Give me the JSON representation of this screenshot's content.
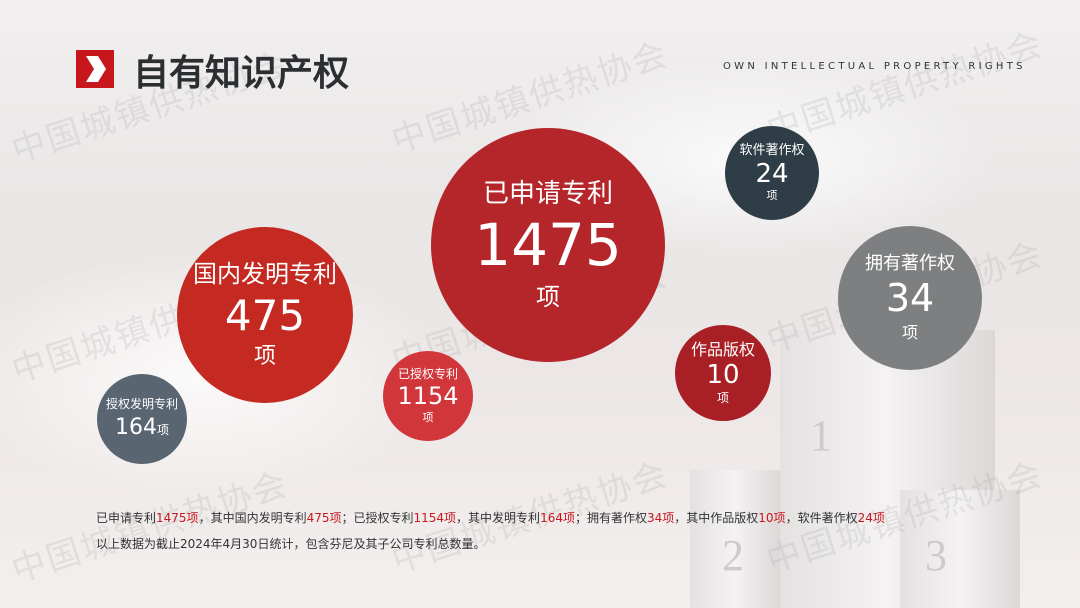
{
  "header": {
    "title": "自有知识产权",
    "subtitle": "OWN INTELLECTUAL PROPERTY RIGHTS"
  },
  "watermark": "中国城镇供热协会",
  "podium": [
    "1",
    "2",
    "3"
  ],
  "circles": {
    "applied": {
      "label": "已申请专利",
      "value": "1475",
      "unit": "项",
      "color": "#b5262b"
    },
    "domestic": {
      "label": "国内发明专利",
      "value": "475",
      "unit": "项",
      "color": "#c42a22"
    },
    "granted_invention": {
      "label": "授权发明专利",
      "value": "164",
      "unit": "项",
      "color": "#5a6572"
    },
    "granted": {
      "label": "已授权专利",
      "value": "1154",
      "unit": "项",
      "color": "#d0363a"
    },
    "works": {
      "label": "作品版权",
      "value": "10",
      "unit": "项",
      "color": "#a82025"
    },
    "software": {
      "label": "软件著作权",
      "value": "24",
      "unit": "项",
      "color": "#2f3d46"
    },
    "copyright": {
      "label": "拥有著作权",
      "value": "34",
      "unit": "项",
      "color": "#7d7f80"
    }
  },
  "notes": {
    "line1": [
      {
        "t": "已申请专利"
      },
      {
        "t": "1475项",
        "red": true
      },
      {
        "t": "，其中国内发明专利"
      },
      {
        "t": "475项",
        "red": true
      },
      {
        "t": "；已授权专利"
      },
      {
        "t": "1154项",
        "red": true
      },
      {
        "t": "，其中发明专利"
      },
      {
        "t": "164项",
        "red": true
      },
      {
        "t": "；拥有著作权"
      },
      {
        "t": "34项",
        "red": true
      },
      {
        "t": "，其中作品版权"
      },
      {
        "t": "10项",
        "red": true
      },
      {
        "t": "，软件著作权"
      },
      {
        "t": "24项",
        "red": true
      }
    ],
    "line2": "以上数据为截止2024年4月30日统计，包含芬尼及其子公司专利总数量。"
  }
}
